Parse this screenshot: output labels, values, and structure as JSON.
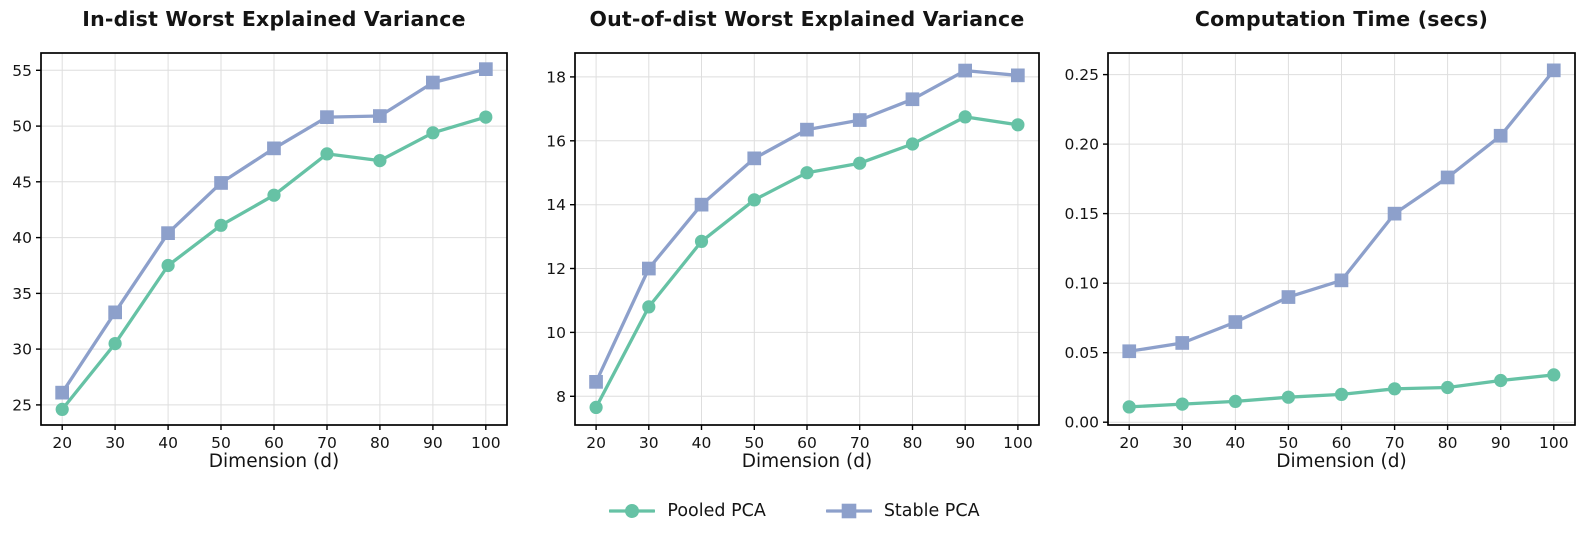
{
  "figure": {
    "background": "#ffffff",
    "axis_color": "#000000",
    "grid_color": "#dedede",
    "text_color": "#141414"
  },
  "legend": {
    "entries": [
      {
        "label": "Pooled PCA",
        "color": "#66c2a5",
        "marker": "circle"
      },
      {
        "label": "Stable PCA",
        "color": "#8da0cb",
        "marker": "square"
      }
    ]
  },
  "chart_data": [
    {
      "type": "line",
      "title": "In-dist Worst Explained Variance",
      "xlabel": "Dimension (d)",
      "x": [
        20,
        30,
        40,
        50,
        60,
        70,
        80,
        90,
        100
      ],
      "xtick_labels": [
        "20",
        "30",
        "40",
        "50",
        "60",
        "70",
        "80",
        "90",
        "100"
      ],
      "xlim": [
        16,
        104
      ],
      "ylim": [
        23.2,
        56.55
      ],
      "ytick_values": [
        25,
        30,
        35,
        40,
        45,
        50,
        55
      ],
      "ytick_labels": [
        "25",
        "30",
        "35",
        "40",
        "45",
        "50",
        "55"
      ],
      "grid": true,
      "legend_position": "figure-bottom",
      "series": [
        {
          "name": "Pooled PCA",
          "color": "#66c2a5",
          "marker": "circle",
          "values": [
            24.6,
            30.5,
            37.5,
            41.1,
            43.8,
            47.5,
            46.9,
            49.4,
            50.8
          ]
        },
        {
          "name": "Stable PCA",
          "color": "#8da0cb",
          "marker": "square",
          "values": [
            26.1,
            33.3,
            40.4,
            44.9,
            48.0,
            50.8,
            50.9,
            53.9,
            55.1
          ]
        }
      ]
    },
    {
      "type": "line",
      "title": "Out-of-dist Worst Explained Variance",
      "xlabel": "Dimension (d)",
      "x": [
        20,
        30,
        40,
        50,
        60,
        70,
        80,
        90,
        100
      ],
      "xtick_labels": [
        "20",
        "30",
        "40",
        "50",
        "60",
        "70",
        "80",
        "90",
        "100"
      ],
      "xlim": [
        16,
        104
      ],
      "ylim": [
        7.1,
        18.75
      ],
      "ytick_values": [
        8,
        10,
        12,
        14,
        16,
        18
      ],
      "ytick_labels": [
        "8",
        "10",
        "12",
        "14",
        "16",
        "18"
      ],
      "grid": true,
      "legend_position": "figure-bottom",
      "series": [
        {
          "name": "Pooled PCA",
          "color": "#66c2a5",
          "marker": "circle",
          "values": [
            7.65,
            10.8,
            12.85,
            14.15,
            15.0,
            15.3,
            15.9,
            16.75,
            16.5
          ]
        },
        {
          "name": "Stable PCA",
          "color": "#8da0cb",
          "marker": "square",
          "values": [
            8.45,
            12.0,
            14.0,
            15.45,
            16.35,
            16.65,
            17.3,
            18.2,
            18.05
          ]
        }
      ]
    },
    {
      "type": "line",
      "title": "Computation Time (secs)",
      "xlabel": "Dimension (d)",
      "x": [
        20,
        30,
        40,
        50,
        60,
        70,
        80,
        90,
        100
      ],
      "xtick_labels": [
        "20",
        "30",
        "40",
        "50",
        "60",
        "70",
        "80",
        "90",
        "100"
      ],
      "xlim": [
        16,
        104
      ],
      "ylim": [
        -0.002,
        0.2655
      ],
      "ytick_values": [
        0.0,
        0.05,
        0.1,
        0.15,
        0.2,
        0.25
      ],
      "ytick_labels": [
        "0.00",
        "0.05",
        "0.10",
        "0.15",
        "0.20",
        "0.25"
      ],
      "grid": true,
      "legend_position": "figure-bottom",
      "series": [
        {
          "name": "Pooled PCA",
          "color": "#66c2a5",
          "marker": "circle",
          "values": [
            0.011,
            0.013,
            0.015,
            0.018,
            0.02,
            0.024,
            0.025,
            0.03,
            0.034
          ]
        },
        {
          "name": "Stable PCA",
          "color": "#8da0cb",
          "marker": "square",
          "values": [
            0.051,
            0.057,
            0.072,
            0.09,
            0.102,
            0.15,
            0.176,
            0.206,
            0.253
          ]
        }
      ]
    }
  ]
}
